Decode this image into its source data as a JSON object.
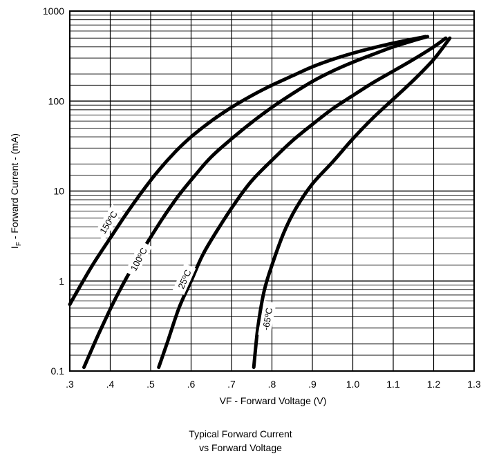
{
  "chart_data": {
    "type": "line",
    "y_scale": "log",
    "grid": true,
    "xlabel": "VF - Forward Voltage (V)",
    "ylabel_main": "I",
    "ylabel_sub": "F",
    "ylabel_rest": " - Forward Current - (mA)",
    "xlim": [
      0.3,
      1.3
    ],
    "ylim": [
      0.1,
      1000
    ],
    "x_ticks": [
      0.3,
      0.4,
      0.5,
      0.6,
      0.7,
      0.8,
      0.9,
      1.0,
      1.1,
      1.2,
      1.3
    ],
    "x_tick_labels": [
      ".3",
      ".4",
      ".5",
      ".6",
      ".7",
      ".8",
      ".9",
      "1.0",
      "1.1",
      "1.2",
      "1.3"
    ],
    "y_ticks": [
      0.1,
      1,
      10,
      100,
      1000
    ],
    "y_tick_labels": [
      "0.1",
      "1",
      "10",
      "100",
      "1000"
    ],
    "series": [
      {
        "name": "150ºC",
        "x": [
          0.3,
          0.33,
          0.36,
          0.4,
          0.44,
          0.48,
          0.52,
          0.56,
          0.6,
          0.65,
          0.7,
          0.75,
          0.8,
          0.85,
          0.9,
          0.95,
          1.0,
          1.05,
          1.1,
          1.15,
          1.18
        ],
        "y": [
          0.55,
          0.95,
          1.6,
          3.0,
          5.6,
          10,
          17,
          27,
          40,
          60,
          85,
          115,
          150,
          190,
          240,
          290,
          340,
          390,
          440,
          490,
          520
        ]
      },
      {
        "name": "100ºC",
        "x": [
          0.335,
          0.37,
          0.41,
          0.45,
          0.49,
          0.53,
          0.57,
          0.61,
          0.65,
          0.7,
          0.75,
          0.8,
          0.85,
          0.9,
          0.95,
          1.0,
          1.05,
          1.1,
          1.15,
          1.185
        ],
        "y": [
          0.11,
          0.25,
          0.6,
          1.3,
          2.6,
          5.0,
          9.0,
          15,
          24,
          38,
          58,
          85,
          120,
          165,
          215,
          270,
          330,
          400,
          470,
          520
        ]
      },
      {
        "name": "25ºC",
        "x": [
          0.52,
          0.54,
          0.57,
          0.6,
          0.63,
          0.67,
          0.71,
          0.75,
          0.8,
          0.85,
          0.9,
          0.95,
          1.0,
          1.05,
          1.1,
          1.15,
          1.2,
          1.23
        ],
        "y": [
          0.11,
          0.2,
          0.5,
          1.0,
          2.0,
          4.0,
          7.5,
          13,
          22,
          36,
          55,
          82,
          115,
          160,
          215,
          290,
          400,
          500
        ]
      },
      {
        "name": "-65ºC",
        "x": [
          0.755,
          0.765,
          0.78,
          0.8,
          0.83,
          0.86,
          0.9,
          0.95,
          1.0,
          1.05,
          1.1,
          1.15,
          1.2,
          1.24
        ],
        "y": [
          0.11,
          0.3,
          0.75,
          1.5,
          3.5,
          6.5,
          12,
          21,
          38,
          65,
          105,
          170,
          290,
          500
        ]
      }
    ],
    "curve_labels": [
      {
        "text": "150ºC",
        "x": 0.395,
        "y": 4.5,
        "angle": -58
      },
      {
        "text": "100ºC",
        "x": 0.47,
        "y": 1.75,
        "angle": -62
      },
      {
        "text": "25ºC",
        "x": 0.583,
        "y": 1.05,
        "angle": -66
      },
      {
        "text": "-65ºC",
        "x": 0.788,
        "y": 0.38,
        "angle": -80
      }
    ]
  },
  "caption": {
    "line1": "Typical Forward Current",
    "line2": "vs Forward Voltage"
  }
}
